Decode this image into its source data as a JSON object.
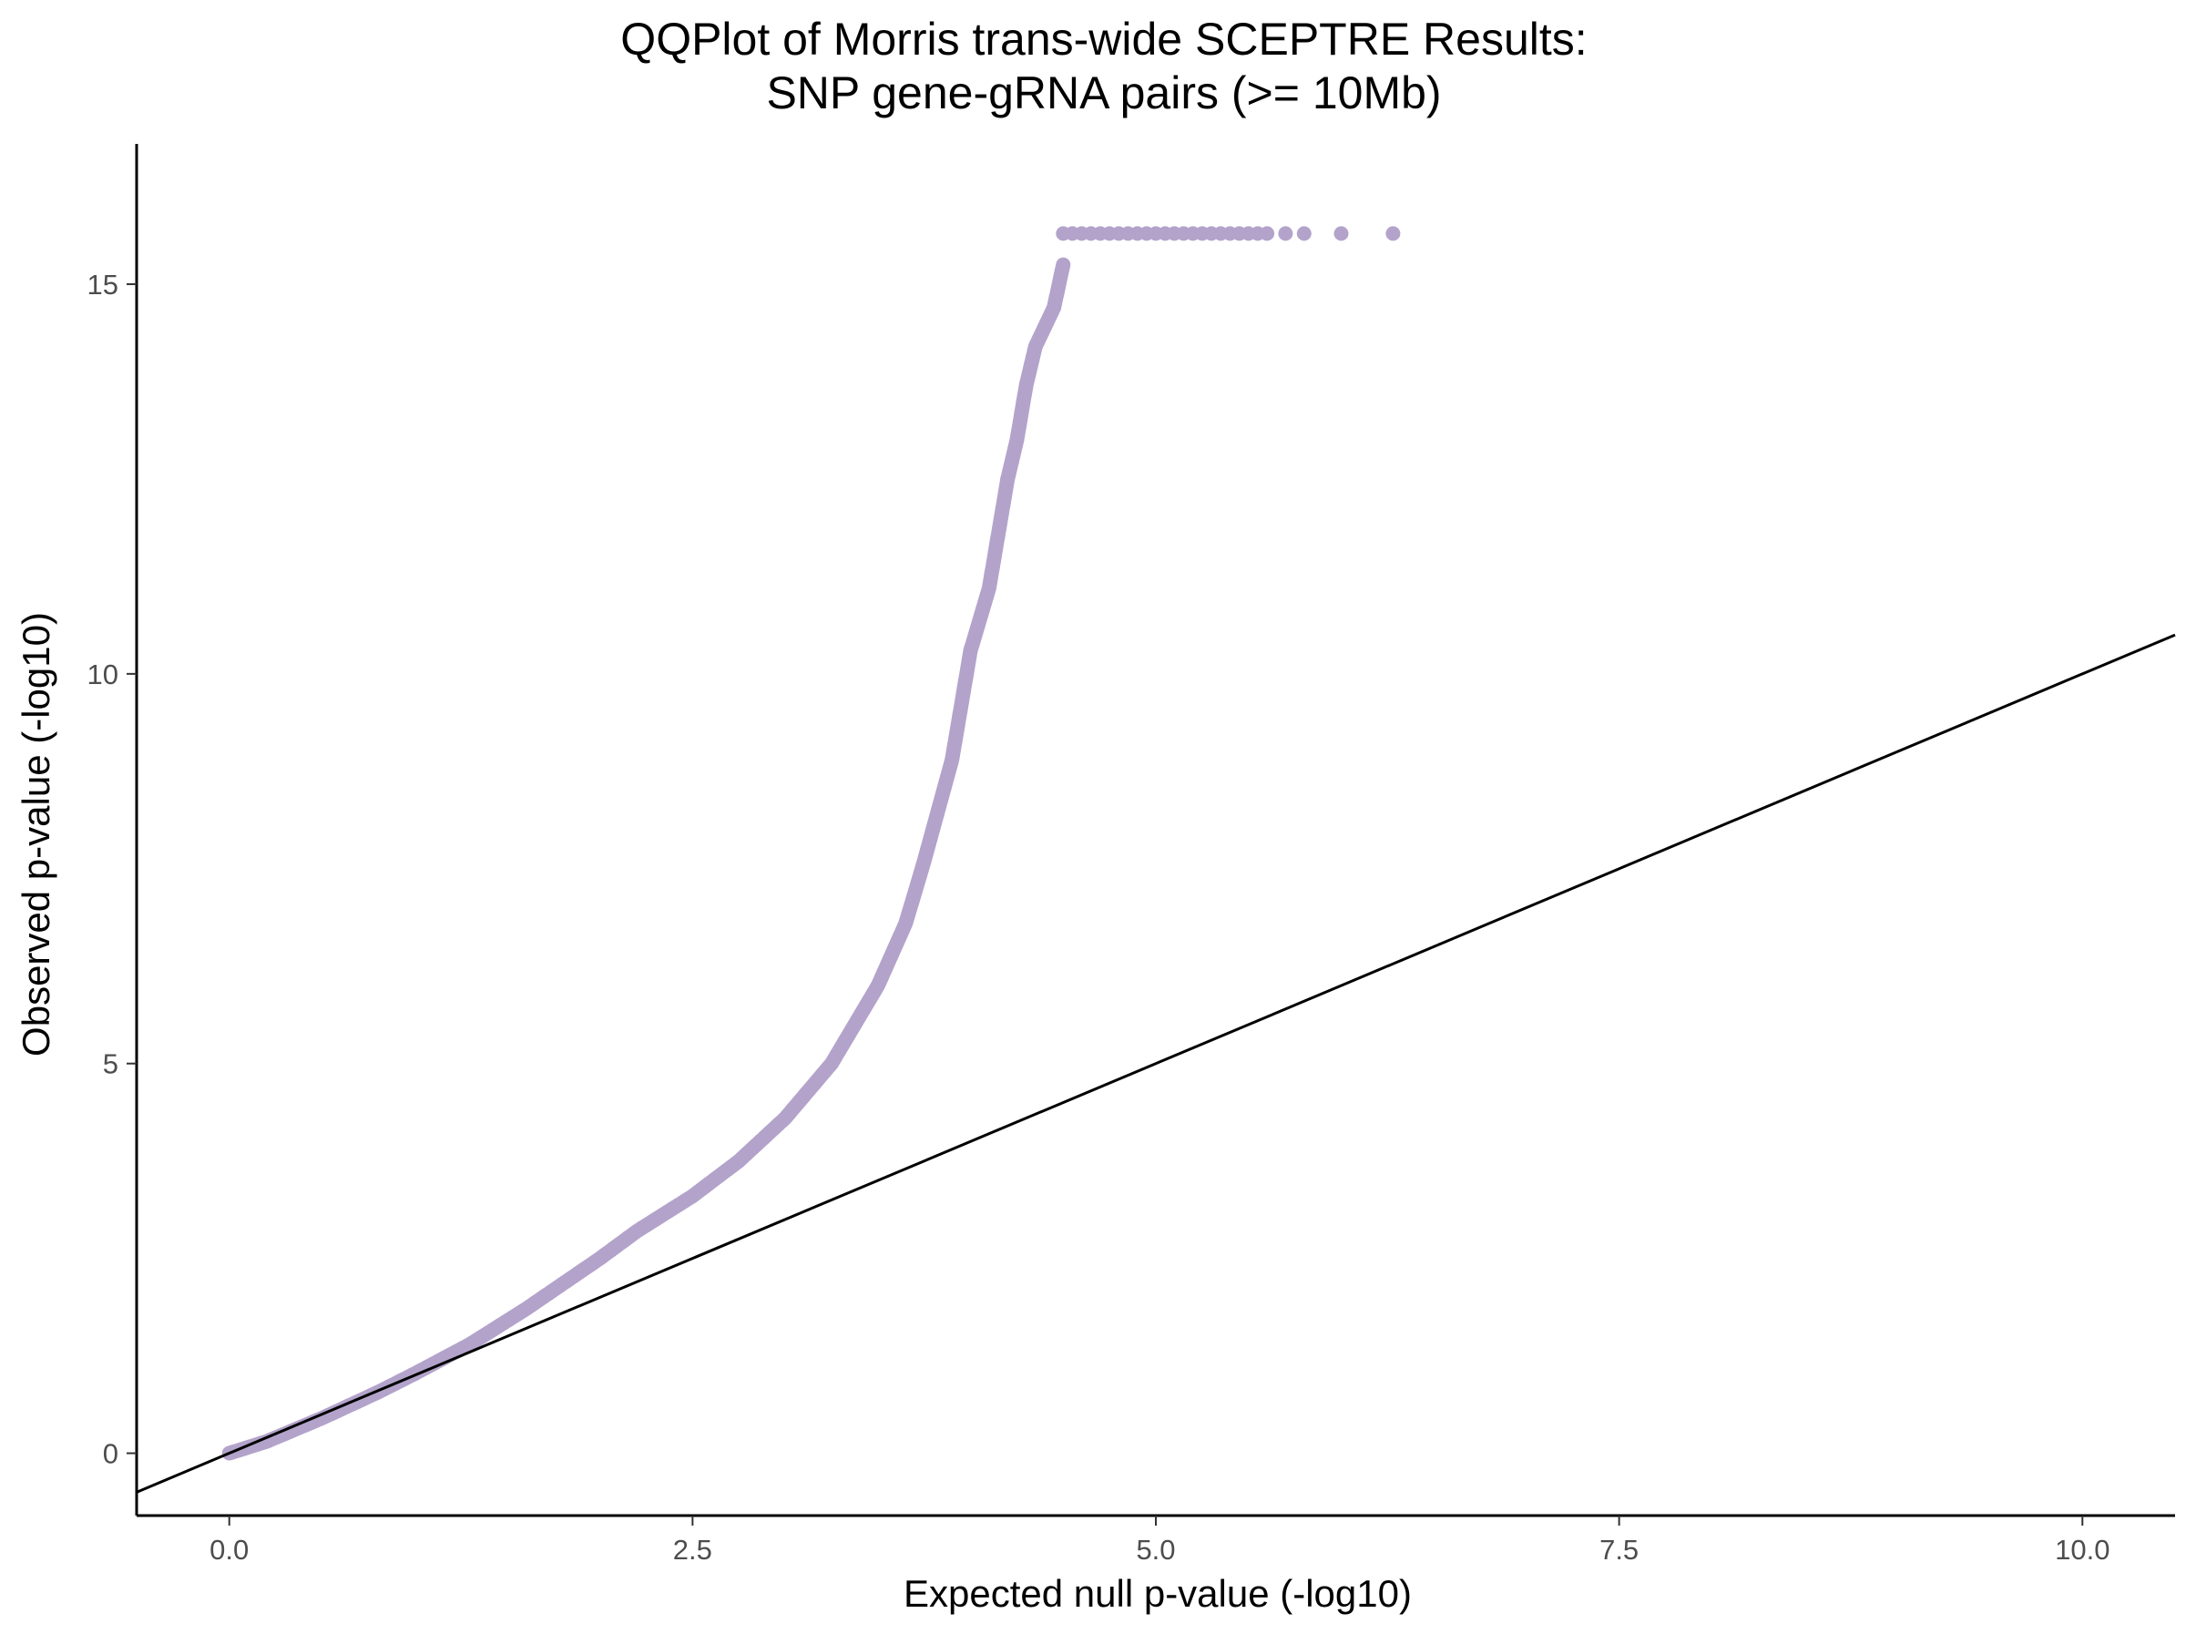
{
  "chart_data": {
    "type": "scatter",
    "title": "QQPlot of Morris trans-wide SCEPTRE Results:",
    "subtitle": "SNP gene-gRNA pairs (>= 10Mb)",
    "xlabel": "Expected null p-value (-log10)",
    "ylabel": "Observed p-value (-log10)",
    "xlim": [
      -0.5,
      10.5
    ],
    "ylim": [
      -0.8,
      16.8
    ],
    "x_ticks": [
      0,
      2.5,
      5,
      7.5,
      10
    ],
    "x_tick_labels": [
      "0.0",
      "2.5",
      "5.0",
      "7.5",
      "10.0"
    ],
    "y_ticks": [
      0,
      5,
      10,
      15
    ],
    "y_tick_labels": [
      "0",
      "5",
      "10",
      "15"
    ],
    "grid": false,
    "legend": "none",
    "point_color": "#b3a3cb",
    "line_color": "#000000",
    "reference_line": {
      "slope": 1,
      "intercept": 0
    },
    "series": [
      {
        "curve": [
          [
            0.0,
            0.0
          ],
          [
            0.2,
            0.15
          ],
          [
            0.5,
            0.45
          ],
          [
            0.8,
            0.78
          ],
          [
            1.0,
            1.02
          ],
          [
            1.3,
            1.4
          ],
          [
            1.6,
            1.85
          ],
          [
            2.0,
            2.5
          ],
          [
            2.2,
            2.85
          ],
          [
            2.3,
            3.0
          ],
          [
            2.5,
            3.3
          ],
          [
            2.75,
            3.75
          ],
          [
            3.0,
            4.3
          ],
          [
            3.25,
            5.0
          ],
          [
            3.5,
            6.0
          ],
          [
            3.65,
            6.8
          ],
          [
            3.75,
            7.6
          ],
          [
            3.9,
            8.9
          ],
          [
            3.95,
            9.6
          ],
          [
            4.0,
            10.3
          ],
          [
            4.1,
            11.1
          ],
          [
            4.15,
            11.8
          ],
          [
            4.2,
            12.5
          ],
          [
            4.25,
            13.0
          ],
          [
            4.3,
            13.7
          ],
          [
            4.35,
            14.2
          ],
          [
            4.45,
            14.7
          ],
          [
            4.5,
            15.25
          ]
        ],
        "capped_y": 15.65,
        "capped_x": [
          4.5,
          4.55,
          4.6,
          4.65,
          4.7,
          4.75,
          4.8,
          4.85,
          4.9,
          4.95,
          5.0,
          5.05,
          5.1,
          5.15,
          5.2,
          5.25,
          5.3,
          5.35,
          5.4,
          5.45,
          5.5,
          5.55,
          5.6,
          5.7,
          5.8,
          6.0,
          6.28
        ]
      }
    ]
  }
}
